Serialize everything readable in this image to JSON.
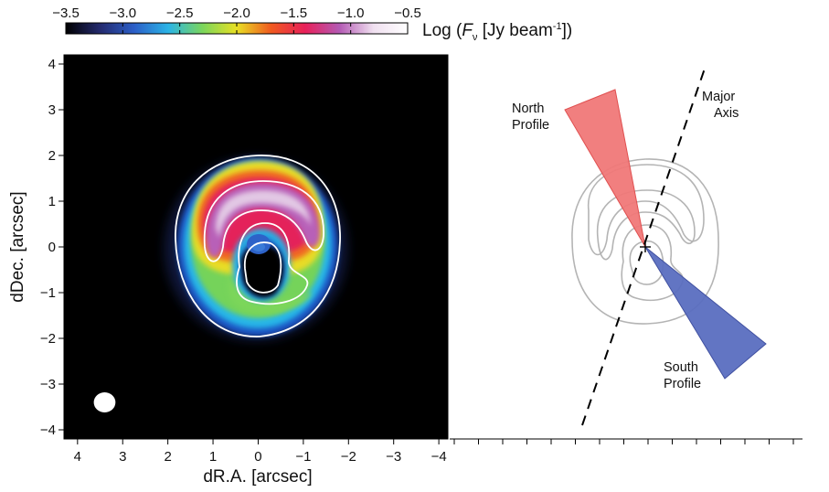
{
  "chart_data": [
    {
      "type": "heatmap",
      "name": "dust-continuum-map",
      "xlabel": "dR.A. [arcsec]",
      "ylabel": "dDec. [arcsec]",
      "xlim": [
        4.3,
        -4.2
      ],
      "ylim": [
        -4.2,
        4.2
      ],
      "x_ticks": [
        4,
        3,
        2,
        1,
        0,
        -1,
        -2,
        -3,
        -4
      ],
      "y_ticks": [
        4,
        3,
        2,
        1,
        0,
        -1,
        -2,
        -3,
        -4
      ],
      "x_tick_labels": [
        "4",
        "3",
        "2",
        "1",
        "0",
        "−1",
        "−2",
        "−3",
        "−4"
      ],
      "y_tick_labels": [
        "4",
        "3",
        "2",
        "1",
        "0",
        "−1",
        "−2",
        "−3",
        "−4"
      ],
      "colorbar": {
        "label_prefix": "Log (",
        "label_var": "F",
        "label_sub": "ν",
        "label_mid": " [Jy beam",
        "label_sup": "-1",
        "label_suffix": "])",
        "range": [
          -3.5,
          -0.5
        ],
        "ticks": [
          -3.5,
          -3.0,
          -2.5,
          -2.0,
          -1.5,
          -1.0,
          -0.5
        ],
        "tick_labels": [
          "−3.5",
          "−3.0",
          "−2.5",
          "−2.0",
          "−1.5",
          "−1.0",
          "−0.5"
        ],
        "colors": [
          "#000000",
          "#242a6e",
          "#2c5fc8",
          "#2bb4e6",
          "#7bd65c",
          "#e8e024",
          "#f05a1f",
          "#e8205a",
          "#b45ab4",
          "#f0e0f0",
          "#ffffff"
        ]
      },
      "beam": {
        "ra": 3.4,
        "dec": -3.4,
        "rx": 0.24,
        "ry": 0.22
      }
    },
    {
      "type": "diagram",
      "name": "profile-geometry",
      "annotations": {
        "north": [
          "North",
          "Profile"
        ],
        "south": [
          "South",
          "Profile"
        ],
        "axis": [
          "Major",
          "Axis"
        ]
      },
      "colors": {
        "north": "#f07878",
        "south": "#5a6ec0",
        "contours": "#b4b4b4"
      }
    }
  ]
}
